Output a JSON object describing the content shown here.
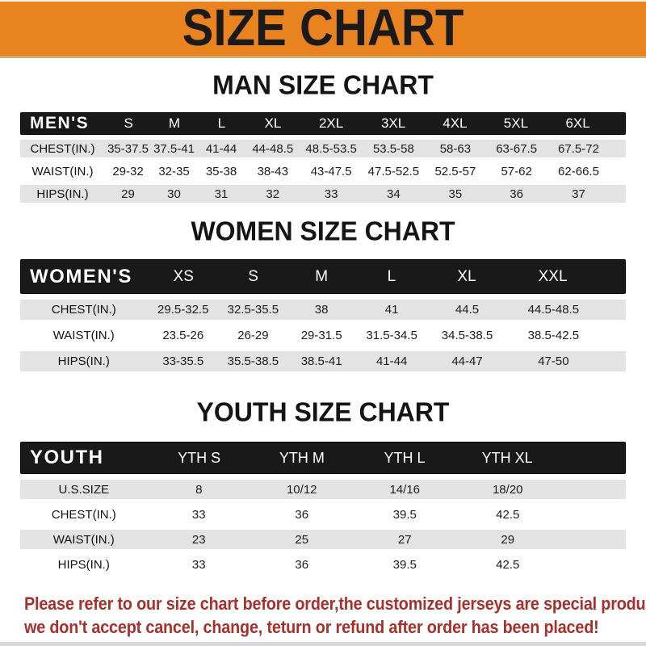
{
  "banner": {
    "title": "SIZE CHART"
  },
  "sections": [
    {
      "heading": "MAN SIZE CHART",
      "table": {
        "name": "MEN'S",
        "sizes": [
          "S",
          "M",
          "L",
          "XL",
          "2XL",
          "3XL",
          "4XL",
          "5XL",
          "6XL"
        ],
        "rows": [
          {
            "label": "CHEST(IN.)",
            "values": [
              "35-37.5",
              "37.5-41",
              "41-44",
              "44-48.5",
              "48.5-53.5",
              "53.5-58",
              "58-63",
              "63-67.5",
              "67.5-72"
            ]
          },
          {
            "label": "WAIST(IN.)",
            "values": [
              "29-32",
              "32-35",
              "35-38",
              "38-43",
              "43-47.5",
              "47.5-52.5",
              "52.5-57",
              "57-62",
              "62-66.5"
            ]
          },
          {
            "label": "HIPS(IN.)",
            "values": [
              "29",
              "30",
              "31",
              "32",
              "33",
              "34",
              "35",
              "36",
              "37"
            ]
          }
        ]
      }
    },
    {
      "heading": "WOMEN SIZE CHART",
      "table": {
        "name": "WOMEN'S",
        "sizes": [
          "XS",
          "S",
          "M",
          "L",
          "XL",
          "XXL"
        ],
        "rows": [
          {
            "label": "CHEST(IN.)",
            "values": [
              "29.5-32.5",
              "32.5-35.5",
              "38",
              "41",
              "44.5",
              "44.5-48.5"
            ]
          },
          {
            "label": "WAIST(IN.)",
            "values": [
              "23.5-26",
              "26-29",
              "29-31.5",
              "31.5-34.5",
              "34.5-38.5",
              "38.5-42.5"
            ]
          },
          {
            "label": "HIPS(IN.)",
            "values": [
              "33-35.5",
              "35.5-38.5",
              "38.5-41",
              "41-44",
              "44-47",
              "47-50"
            ]
          }
        ]
      }
    },
    {
      "heading": "YOUTH SIZE CHART",
      "table": {
        "name": "YOUTH",
        "sizes": [
          "YTH S",
          "YTH M",
          "YTH L",
          "YTH XL"
        ],
        "rows": [
          {
            "label": "U.S.SIZE",
            "values": [
              "8",
              "10/12",
              "14/16",
              "18/20"
            ]
          },
          {
            "label": "CHEST(IN.)",
            "values": [
              "33",
              "36",
              "39.5",
              "42.5"
            ]
          },
          {
            "label": "WAIST(IN.)",
            "values": [
              "23",
              "25",
              "27",
              "29"
            ]
          },
          {
            "label": "HIPS(IN.)",
            "values": [
              "33",
              "36",
              "39.5",
              "42.5"
            ]
          }
        ]
      }
    }
  ],
  "footer": {
    "lines": [
      "Please refer to our size chart before order,the customized jerseys are special products,",
      "we don't accept cancel, change, teturn or refund after order has been placed!"
    ]
  },
  "colors": {
    "banner_bg": "#E8831F",
    "banner_text": "#1A1A1A",
    "header_bar_bg": "#191919",
    "row_shade": "#E3E3E3",
    "note_red": "#A6302C"
  }
}
